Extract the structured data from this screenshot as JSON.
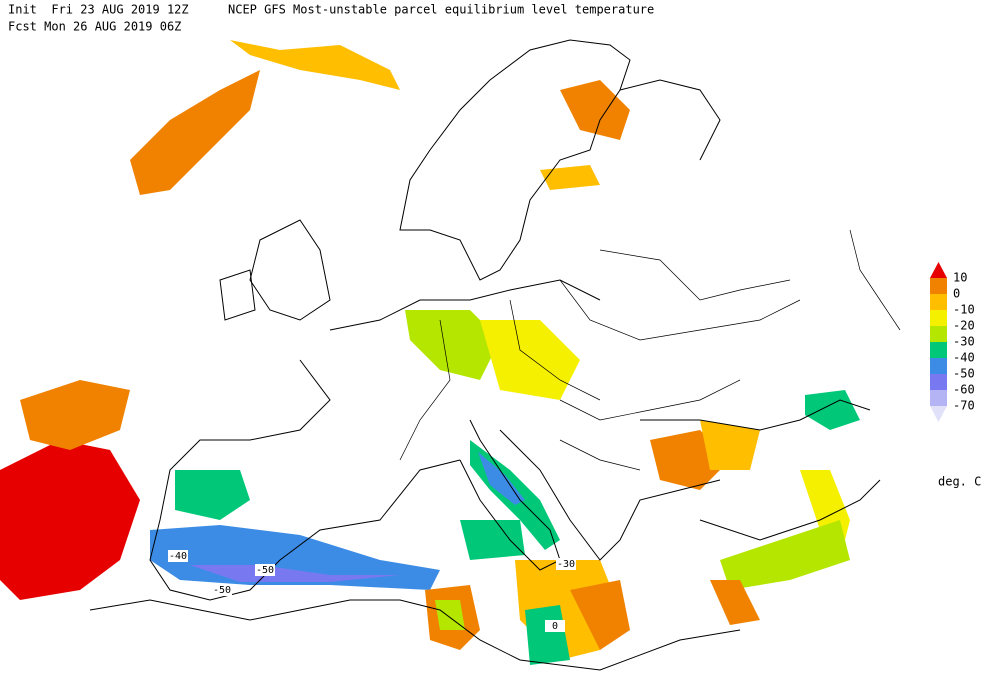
{
  "header": {
    "init": "Init  Fri 23 AUG 2019 12Z",
    "title": "NCEP GFS Most-unstable parcel equilibrium level temperature",
    "forecast": "Fcst Mon 26 AUG 2019 06Z"
  },
  "legend": {
    "colors": [
      "#e60000",
      "#f08200",
      "#ffbe00",
      "#f5f000",
      "#b4e600",
      "#00c878",
      "#3c8ce6",
      "#7878f0",
      "#b4b4f5",
      "#e1e1fa"
    ],
    "levels": [
      10,
      0,
      -10,
      -20,
      -30,
      -40,
      -50,
      -60,
      -70
    ],
    "unit": "deg. C"
  },
  "contour_labels": [
    -40,
    -50,
    -50,
    -30,
    0
  ]
}
